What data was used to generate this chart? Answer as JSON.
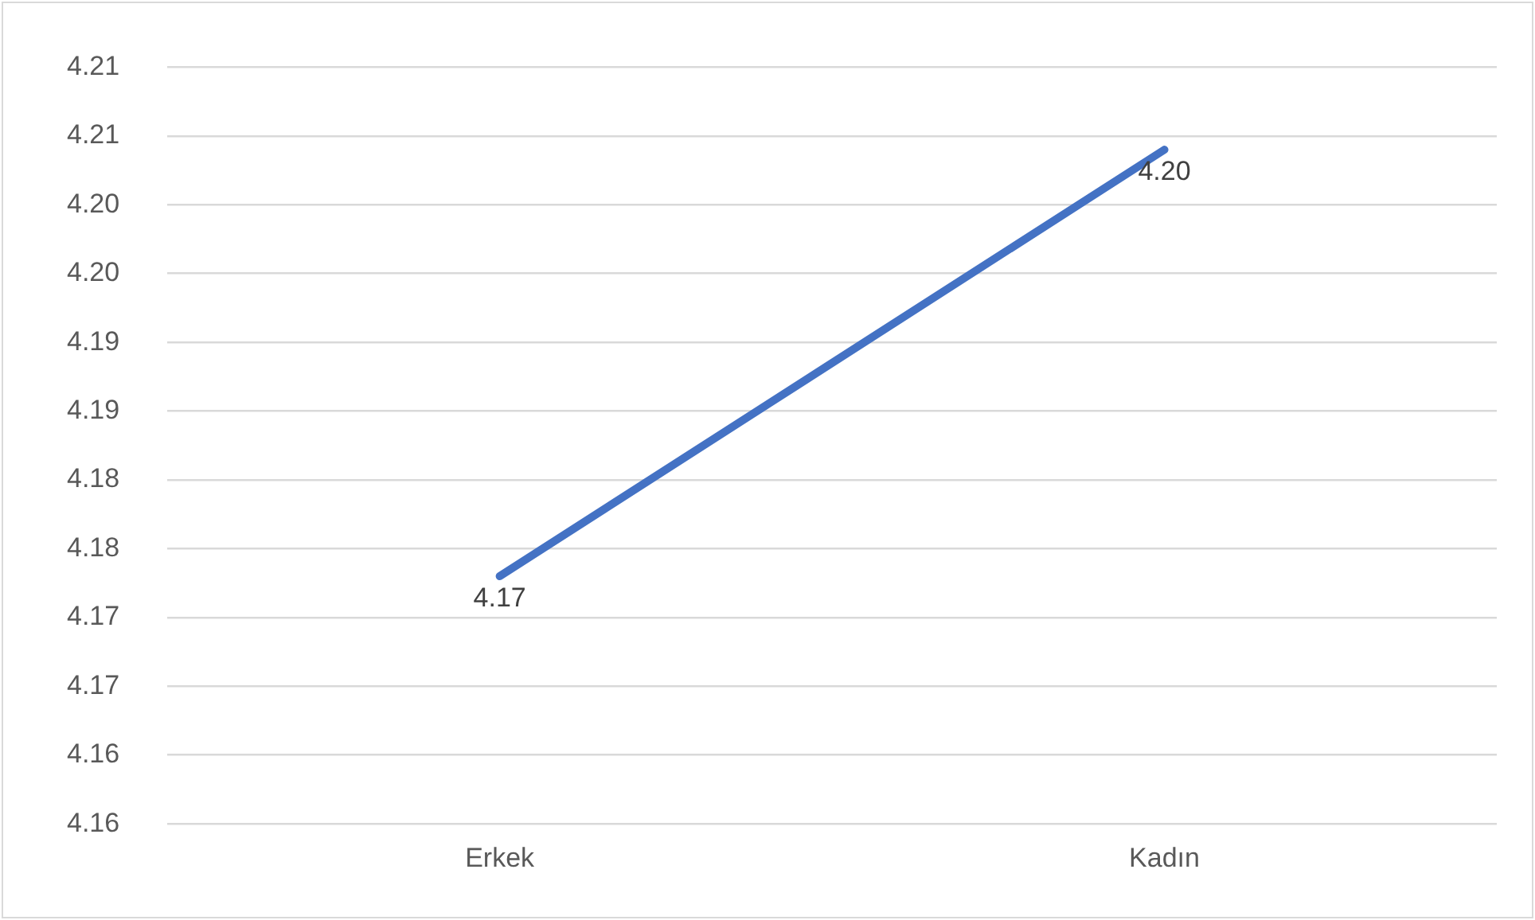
{
  "chart_data": {
    "type": "line",
    "categories": [
      "Erkek",
      "Kadın"
    ],
    "series": [
      {
        "color": "#4472c4",
        "values": [
          4.173,
          4.204
        ]
      }
    ],
    "value_labels": [
      "4.17",
      "4.20"
    ],
    "ylim": [
      4.155,
      4.21
    ],
    "yticks": [
      {
        "value": 4.155,
        "label": "4.16"
      },
      {
        "value": 4.16,
        "label": "4.16"
      },
      {
        "value": 4.165,
        "label": "4.17"
      },
      {
        "value": 4.17,
        "label": "4.17"
      },
      {
        "value": 4.175,
        "label": "4.18"
      },
      {
        "value": 4.18,
        "label": "4.18"
      },
      {
        "value": 4.185,
        "label": "4.19"
      },
      {
        "value": 4.19,
        "label": "4.19"
      },
      {
        "value": 4.195,
        "label": "4.20"
      },
      {
        "value": 4.2,
        "label": "4.20"
      },
      {
        "value": 4.205,
        "label": "4.21"
      },
      {
        "value": 4.21,
        "label": "4.21"
      }
    ],
    "grid": "y",
    "legend": false,
    "marker": "none",
    "line_style": "solid"
  }
}
